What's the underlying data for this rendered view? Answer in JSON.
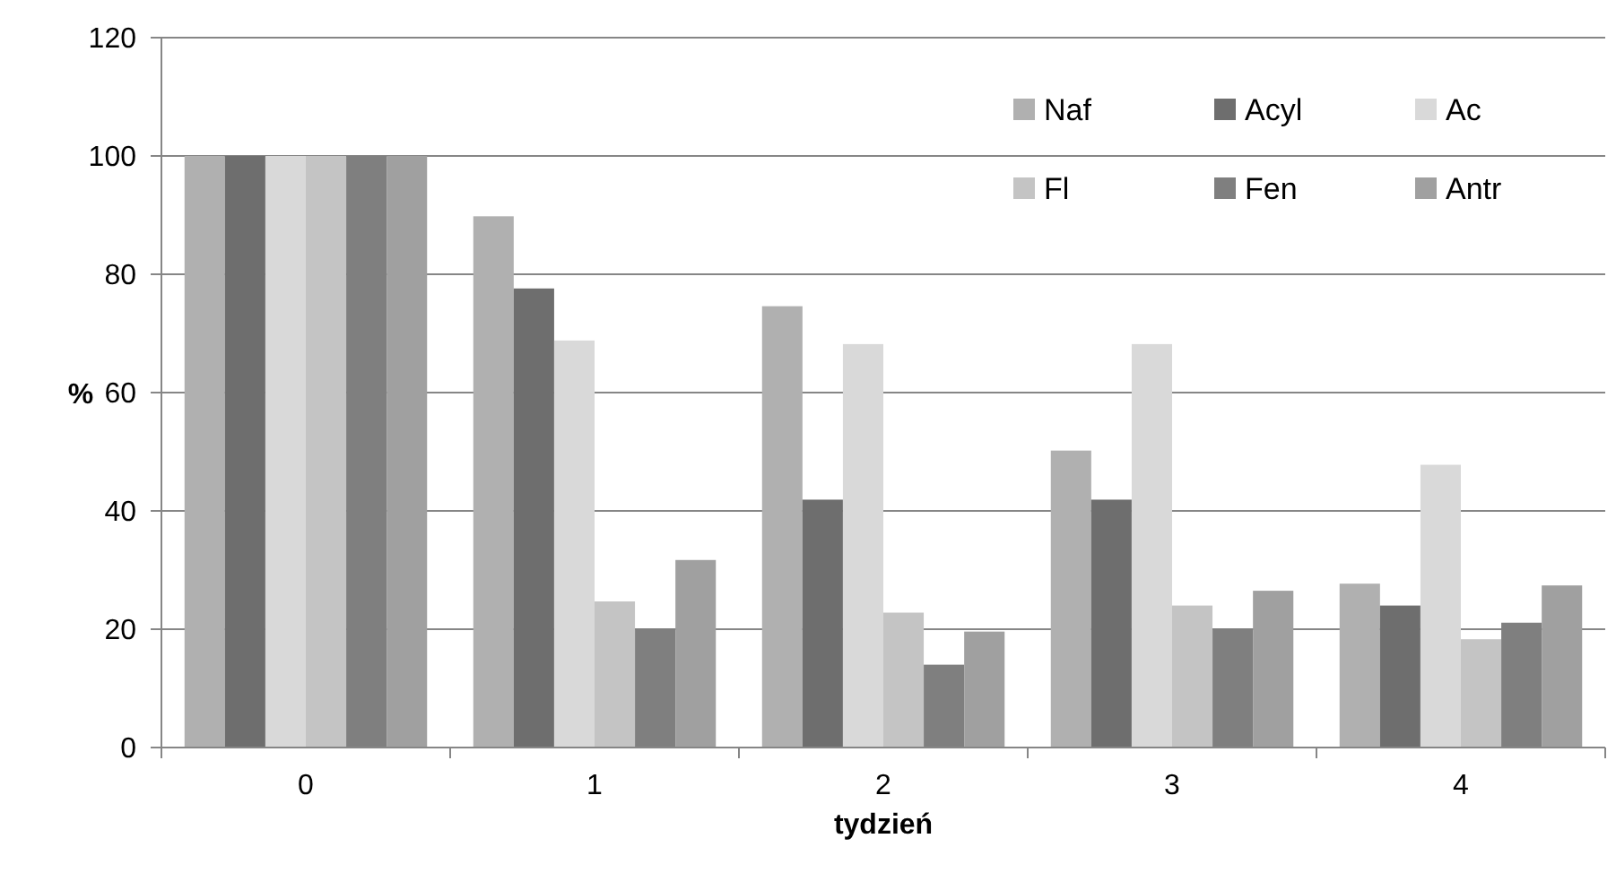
{
  "chart_data": {
    "type": "bar",
    "xlabel": "tydzień",
    "ylabel": "%",
    "categories": [
      "0",
      "1",
      "2",
      "3",
      "4"
    ],
    "series": [
      {
        "name": "Naf",
        "color": "#b0b0b0",
        "values": [
          100,
          89.8,
          74.6,
          50.2,
          27.7
        ]
      },
      {
        "name": "Acyl",
        "color": "#6e6e6e",
        "values": [
          100,
          77.6,
          41.9,
          41.9,
          24.0
        ]
      },
      {
        "name": "Ac",
        "color": "#d9d9d9",
        "values": [
          100,
          68.8,
          68.2,
          68.2,
          47.8
        ]
      },
      {
        "name": "Fl",
        "color": "#c4c4c4",
        "values": [
          100,
          24.7,
          22.8,
          24.0,
          18.3
        ]
      },
      {
        "name": "Fen",
        "color": "#7f7f7f",
        "values": [
          100,
          20.1,
          14.0,
          20.1,
          21.1
        ]
      },
      {
        "name": "Antr",
        "color": "#a0a0a0",
        "values": [
          100,
          31.7,
          19.6,
          26.5,
          27.4
        ]
      }
    ],
    "ylim": [
      0,
      120
    ],
    "yticks": [
      0,
      20,
      40,
      60,
      80,
      100,
      120
    ],
    "grid": "y",
    "legend": "top right"
  }
}
